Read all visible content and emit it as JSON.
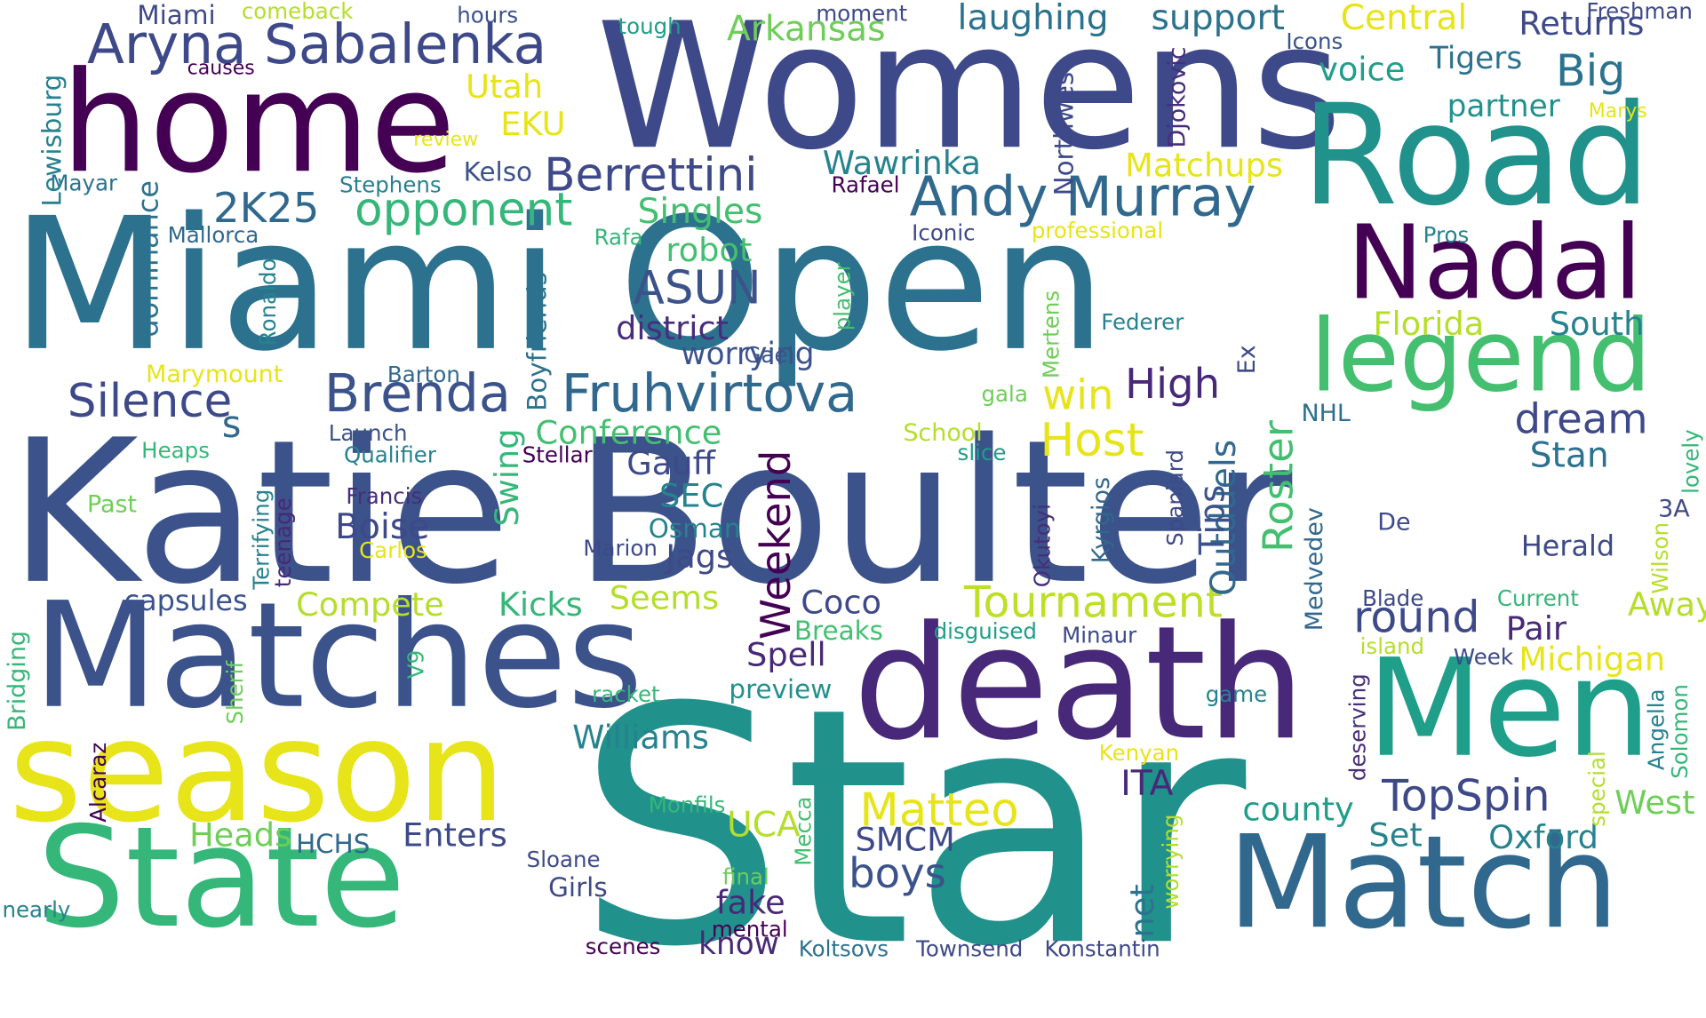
{
  "words": [
    {
      "text": "Katie Boulter",
      "color": "#3b528b"
    },
    {
      "text": "Star",
      "color": "#21918c"
    },
    {
      "text": "Miami Open",
      "color": "#2c728e"
    },
    {
      "text": "Womens",
      "color": "#3e4989"
    },
    {
      "text": "home",
      "color": "#440154"
    },
    {
      "text": "Road",
      "color": "#21918c"
    },
    {
      "text": "Matches",
      "color": "#3b528b"
    },
    {
      "text": "death",
      "color": "#482878"
    },
    {
      "text": "season",
      "color": "#e7e419"
    },
    {
      "text": "State",
      "color": "#35b779"
    },
    {
      "text": "Match",
      "color": "#31688e"
    },
    {
      "text": "Men",
      "color": "#1f9e89"
    },
    {
      "text": "Nadal",
      "color": "#440154"
    },
    {
      "text": "legend",
      "color": "#44bf70"
    },
    {
      "text": "Aryna Sabalenka",
      "color": "#3e4989"
    },
    {
      "text": "Andy Murray",
      "color": "#31688e"
    },
    {
      "text": "Berrettini",
      "color": "#3e4989"
    },
    {
      "text": "Fruhvirtova",
      "color": "#31688e"
    },
    {
      "text": "Brenda",
      "color": "#3b528b"
    },
    {
      "text": "2K25",
      "color": "#31688e"
    },
    {
      "text": "opponent",
      "color": "#35b779"
    },
    {
      "text": "Silence",
      "color": "#3e4989"
    },
    {
      "text": "Tournament",
      "color": "#bddf26"
    },
    {
      "text": "Matteo",
      "color": "#e7e419"
    },
    {
      "text": "TopSpin",
      "color": "#3e4989"
    },
    {
      "text": "Weekend",
      "color": "#440154"
    },
    {
      "text": "Roster",
      "color": "#44bf70"
    },
    {
      "text": "Outduels",
      "color": "#31688e"
    },
    {
      "text": "Tips",
      "color": "#3b528b"
    },
    {
      "text": "round",
      "color": "#3e4989"
    },
    {
      "text": "dream",
      "color": "#3e4989"
    },
    {
      "text": "High",
      "color": "#482878"
    },
    {
      "text": "Host",
      "color": "#e7e419"
    },
    {
      "text": "win",
      "color": "#e7e419"
    },
    {
      "text": "ASUN",
      "color": "#3b528b"
    },
    {
      "text": "district",
      "color": "#472d7b"
    },
    {
      "text": "Singles",
      "color": "#44bf70"
    },
    {
      "text": "Wawrinka",
      "color": "#26828e"
    },
    {
      "text": "Matchups",
      "color": "#e7e419"
    },
    {
      "text": "Florida",
      "color": "#b5de2b"
    },
    {
      "text": "South",
      "color": "#26828e"
    },
    {
      "text": "Stan",
      "color": "#2c728e"
    },
    {
      "text": "Arkansas",
      "color": "#6ece58"
    },
    {
      "text": "laughing",
      "color": "#2c728e"
    },
    {
      "text": "support",
      "color": "#2c728e"
    },
    {
      "text": "Central",
      "color": "#e7e419"
    },
    {
      "text": "Returns",
      "color": "#3e4989"
    },
    {
      "text": "Big",
      "color": "#2c728e"
    },
    {
      "text": "Tigers",
      "color": "#2c728e"
    },
    {
      "text": "voice",
      "color": "#1f9e89"
    },
    {
      "text": "partner",
      "color": "#21918c"
    },
    {
      "text": "Utah",
      "color": "#e7e419"
    },
    {
      "text": "EKU",
      "color": "#e7e419"
    },
    {
      "text": "Kelso",
      "color": "#3b528b"
    },
    {
      "text": "robot",
      "color": "#44bf70"
    },
    {
      "text": "Conference",
      "color": "#44bf70"
    },
    {
      "text": "Gauff",
      "color": "#3e4989"
    },
    {
      "text": "SEC",
      "color": "#26828e"
    },
    {
      "text": "Swing",
      "color": "#35b779"
    },
    {
      "text": "Boise",
      "color": "#3e4989"
    },
    {
      "text": "Jags",
      "color": "#3e4989"
    },
    {
      "text": "Osman",
      "color": "#26828e"
    },
    {
      "text": "Coco",
      "color": "#3e4989"
    },
    {
      "text": "Pair",
      "color": "#482878"
    },
    {
      "text": "Away",
      "color": "#b5de2b"
    },
    {
      "text": "Herald",
      "color": "#3e4989"
    },
    {
      "text": "Michigan",
      "color": "#e7e419"
    },
    {
      "text": "West",
      "color": "#6ece58"
    },
    {
      "text": "Oxford",
      "color": "#26828e"
    },
    {
      "text": "Set",
      "color": "#26828e"
    },
    {
      "text": "county",
      "color": "#1f9e89"
    },
    {
      "text": "ITA",
      "color": "#482878"
    },
    {
      "text": "SMCM",
      "color": "#3e4989"
    },
    {
      "text": "boys",
      "color": "#3b528b"
    },
    {
      "text": "UCA",
      "color": "#b5de2b"
    },
    {
      "text": "fake",
      "color": "#482878"
    },
    {
      "text": "know",
      "color": "#482878"
    },
    {
      "text": "Enters",
      "color": "#3e4989"
    },
    {
      "text": "Heads",
      "color": "#6ece58"
    },
    {
      "text": "HCHS",
      "color": "#31688e"
    },
    {
      "text": "Williams",
      "color": "#26828e"
    },
    {
      "text": "Kicks",
      "color": "#35b779"
    },
    {
      "text": "Seems",
      "color": "#b5de2b"
    },
    {
      "text": "Compete",
      "color": "#b5de2b"
    },
    {
      "text": "capsules",
      "color": "#3b528b"
    },
    {
      "text": "Spell",
      "color": "#482878"
    },
    {
      "text": "preview",
      "color": "#21918c"
    },
    {
      "text": "Breaks",
      "color": "#44bf70"
    },
    {
      "text": "Miami",
      "color": "#3e4989"
    },
    {
      "text": "comeback",
      "color": "#b5de2b"
    },
    {
      "text": "hours",
      "color": "#3b528b"
    },
    {
      "text": "tough",
      "color": "#1f9e89"
    },
    {
      "text": "moment",
      "color": "#3e4989"
    },
    {
      "text": "Freshman",
      "color": "#3e4989"
    },
    {
      "text": "Icons",
      "color": "#3b528b"
    },
    {
      "text": "Marys",
      "color": "#e7e419"
    },
    {
      "text": "causes",
      "color": "#440154"
    },
    {
      "text": "review",
      "color": "#e7e419"
    },
    {
      "text": "Lewisburg",
      "color": "#26828e"
    },
    {
      "text": "Mayar",
      "color": "#2c728e"
    },
    {
      "text": "Stephens",
      "color": "#26828e"
    },
    {
      "text": "Mallorca",
      "color": "#31688e"
    },
    {
      "text": "Rafael",
      "color": "#440154"
    },
    {
      "text": "Iconic",
      "color": "#3e4989"
    },
    {
      "text": "professional",
      "color": "#e7e419"
    },
    {
      "text": "Pros",
      "color": "#26828e"
    },
    {
      "text": "Rafa",
      "color": "#35b779"
    },
    {
      "text": "Federer",
      "color": "#26828e"
    },
    {
      "text": "Gael",
      "color": "#3b528b"
    },
    {
      "text": "Barton",
      "color": "#31688e"
    },
    {
      "text": "Marymount",
      "color": "#e7e419"
    },
    {
      "text": "Launch",
      "color": "#3b528b"
    },
    {
      "text": "Qualifier",
      "color": "#26828e"
    },
    {
      "text": "Stellar",
      "color": "#440154"
    },
    {
      "text": "Heaps",
      "color": "#35b779"
    },
    {
      "text": "Past",
      "color": "#6ece58"
    },
    {
      "text": "Francis",
      "color": "#472d7b"
    },
    {
      "text": "Carlos",
      "color": "#e7e419"
    },
    {
      "text": "Marion",
      "color": "#3e4989"
    },
    {
      "text": "School",
      "color": "#b5de2b"
    },
    {
      "text": "slice",
      "color": "#1f9e89"
    },
    {
      "text": "gala",
      "color": "#6ece58"
    },
    {
      "text": "NHL",
      "color": "#2c728e"
    },
    {
      "text": "De",
      "color": "#3e4989"
    },
    {
      "text": "3A",
      "color": "#3e4989"
    },
    {
      "text": "disguised",
      "color": "#1f9e89"
    },
    {
      "text": "Minaur",
      "color": "#3e4989"
    },
    {
      "text": "Current",
      "color": "#35b779"
    },
    {
      "text": "Blade",
      "color": "#3e4989"
    },
    {
      "text": "island",
      "color": "#b5de2b"
    },
    {
      "text": "Week",
      "color": "#3e4989"
    },
    {
      "text": "racket",
      "color": "#35b779"
    },
    {
      "text": "game",
      "color": "#26828e"
    },
    {
      "text": "Kenyan",
      "color": "#e7e419"
    },
    {
      "text": "Monfils",
      "color": "#35b779"
    },
    {
      "text": "final",
      "color": "#6ece58"
    },
    {
      "text": "mental",
      "color": "#440154"
    },
    {
      "text": "Sloane",
      "color": "#3e4989"
    },
    {
      "text": "Girls",
      "color": "#3e4989"
    },
    {
      "text": "nearly",
      "color": "#26828e"
    },
    {
      "text": "scenes",
      "color": "#440154"
    },
    {
      "text": "Koltsovs",
      "color": "#2c728e"
    },
    {
      "text": "Townsend",
      "color": "#3e4989"
    },
    {
      "text": "Konstantin",
      "color": "#3e4989"
    },
    {
      "text": "Northwest",
      "color": "#3e4989"
    },
    {
      "text": "Djokovic",
      "color": "#472d7b"
    },
    {
      "text": "Ronaldo",
      "color": "#26828e"
    },
    {
      "text": "dominance",
      "color": "#2c728e"
    },
    {
      "text": "Boyfriends",
      "color": "#2c728e"
    },
    {
      "text": "player",
      "color": "#44bf70"
    },
    {
      "text": "Mertens",
      "color": "#6ece58"
    },
    {
      "text": "Ex",
      "color": "#3e4989"
    },
    {
      "text": "Terrifying",
      "color": "#26828e"
    },
    {
      "text": "teenage",
      "color": "#482878"
    },
    {
      "text": "Kyrgios",
      "color": "#31688e"
    },
    {
      "text": "Okutoyi",
      "color": "#472d7b"
    },
    {
      "text": "Spaniard",
      "color": "#3e4989"
    },
    {
      "text": "Medvedev",
      "color": "#31688e"
    },
    {
      "text": "Wilson",
      "color": "#b5de2b"
    },
    {
      "text": "lovely",
      "color": "#35b779"
    },
    {
      "text": "Bridging",
      "color": "#35b779"
    },
    {
      "text": "Alcaraz",
      "color": "#440154"
    },
    {
      "text": "Sherif",
      "color": "#6ece58"
    },
    {
      "text": "V9",
      "color": "#35b779"
    },
    {
      "text": "Mecca",
      "color": "#44bf70"
    },
    {
      "text": "worrying",
      "color": "#b5de2b"
    },
    {
      "text": "net",
      "color": "#2c728e"
    },
    {
      "text": "deserving",
      "color": "#472d7b"
    },
    {
      "text": "Angella",
      "color": "#26828e"
    },
    {
      "text": "Solomon",
      "color": "#35b779"
    },
    {
      "text": "special",
      "color": "#b5de2b"
    },
    {
      "text": "s",
      "color": "#31688e"
    }
  ]
}
